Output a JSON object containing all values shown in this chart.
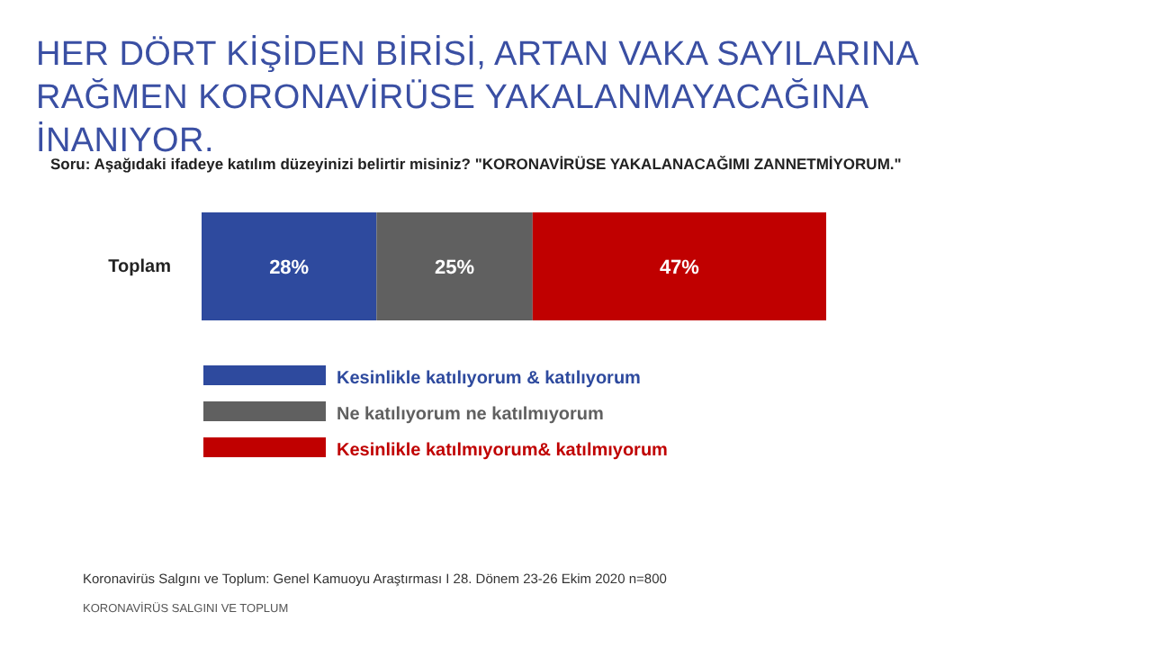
{
  "chart_data": {
    "type": "bar",
    "orientation": "horizontal",
    "stacked": true,
    "title": "HER DÖRT KİŞİDEN BİRİSİ, ARTAN VAKA SAYILARINA RAĞMEN KORONAVİRÜSE YAKALANMAYACAĞINA İNANIYOR.",
    "categories": [
      "Toplam"
    ],
    "series": [
      {
        "name": "Kesinlikle katılıyorum & katılıyorum",
        "color": "#2e4a9e",
        "values": [
          28
        ],
        "value_labels": [
          "28%"
        ]
      },
      {
        "name": "Ne katılıyorum ne katılmıyorum",
        "color": "#606060",
        "values": [
          25
        ],
        "value_labels": [
          "25%"
        ]
      },
      {
        "name": "Kesinlikle katılmıyorum& katılmıyorum",
        "color": "#c00000",
        "values": [
          47
        ],
        "value_labels": [
          "47%"
        ]
      }
    ],
    "tick_labels": "y",
    "legend": "bottom left",
    "annotations": [
      "Soru: Aşağıdaki ifadeye katılım düzeyinizi belirtir misiniz? \"KORONAVİRÜSE YAKALANACAĞIMI ZANNETMİYORUM.\"",
      "Koronavirüs Salgını ve Toplum: Genel Kamuoyu Araştırması I 28. Dönem 23-26 Ekim 2020 n=800",
      "KORONAVİRÜS SALGINI VE TOPLUM"
    ]
  }
}
